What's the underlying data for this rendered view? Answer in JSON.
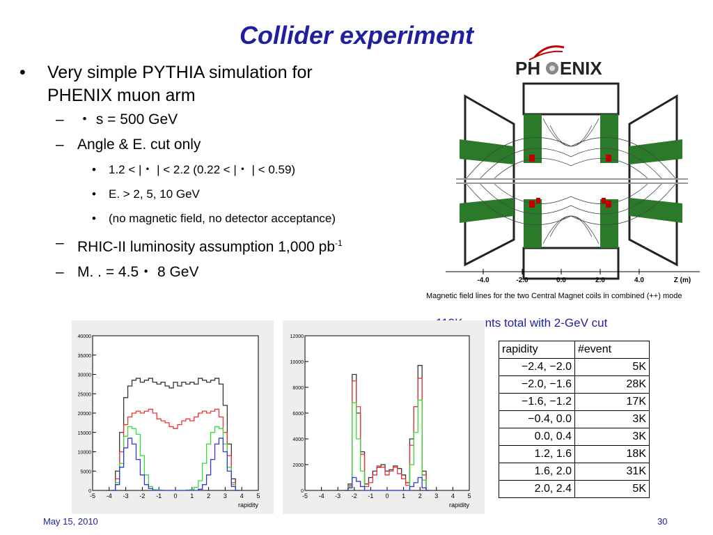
{
  "slide": {
    "title": "Collider experiment",
    "bullet_main_line1": "Very simple PYTHIA simulation for",
    "bullet_main_line2": "PHENIX muon arm",
    "sub1": "・ s = 500 GeV",
    "sub2": "Angle & E.  cut only",
    "sub2_items": [
      "1.2 < |・  | < 2.2 (0.22 < |・  | < 0.59)",
      "E.  > 2, 5, 10 GeV",
      "(no magnetic field, no detector acceptance)"
    ],
    "sub3_text": "RHIC-II luminosity assumption 1,000 pb",
    "sub3_sup": "-1",
    "sub4": "M.  .  = 4.5・  8 GeV",
    "bullet_glyph": "•",
    "dash_glyph": "–"
  },
  "phenix": {
    "logo_left": "PH",
    "logo_right": "ENIX",
    "axis_ticks": [
      "-4.0",
      "-2.0",
      "0.0",
      "2.0",
      "4.0"
    ],
    "axis_label": "Z (m)",
    "caption": "Magnetic field lines for the two Central Magnet coils in combined (++) mode"
  },
  "events_caption": "110K events total with 2-GeV cut",
  "table": {
    "headers": [
      "rapidity",
      "#event"
    ],
    "rows": [
      [
        "−2.4, −2.0",
        "5K"
      ],
      [
        "−2.0, −1.6",
        "28K"
      ],
      [
        "−1.6, −1.2",
        "17K"
      ],
      [
        "−0.4, 0.0",
        "3K"
      ],
      [
        "0.0, 0.4",
        "3K"
      ],
      [
        "1.2, 1.6",
        "18K"
      ],
      [
        "1.6, 2.0",
        "31K"
      ],
      [
        "2.0, 2.4",
        "5K"
      ]
    ]
  },
  "chart_data": [
    {
      "type": "line",
      "title": "",
      "xlabel": "rapidity",
      "ylabel": "",
      "xlim": [
        -5,
        5
      ],
      "ylim": [
        0,
        40000
      ],
      "x_ticks": [
        -5,
        -4,
        -3,
        -2,
        -1,
        0,
        1,
        2,
        3,
        4,
        5
      ],
      "y_ticks": [
        0,
        5000,
        10000,
        15000,
        20000,
        25000,
        30000,
        35000,
        40000
      ],
      "x": [
        -3.75,
        -3.5,
        -3.25,
        -3.0,
        -2.75,
        -2.5,
        -2.25,
        -2.0,
        -1.75,
        -1.5,
        -1.25,
        -1.0,
        -0.75,
        -0.5,
        -0.25,
        0.0,
        0.25,
        0.5,
        0.75,
        1.0,
        1.25,
        1.5,
        1.75,
        2.0,
        2.25,
        2.5,
        2.75,
        3.0,
        3.25,
        3.5,
        3.75
      ],
      "series": [
        {
          "color": "#333333",
          "values": [
            0,
            5000,
            15000,
            24000,
            27000,
            28500,
            29000,
            28000,
            28500,
            29000,
            28000,
            27500,
            28000,
            27000,
            26500,
            28000,
            27000,
            28000,
            27500,
            28000,
            27500,
            29000,
            28500,
            28000,
            28500,
            29000,
            27500,
            22000,
            12000,
            3000,
            0
          ]
        },
        {
          "color": "#ee3333",
          "values": [
            0,
            3000,
            10000,
            17000,
            19000,
            20000,
            20500,
            20000,
            20500,
            21000,
            20000,
            18500,
            18000,
            17500,
            16500,
            16000,
            17000,
            18000,
            18500,
            18000,
            19000,
            20000,
            20500,
            20000,
            20500,
            21000,
            19000,
            15000,
            9000,
            2000,
            0
          ]
        },
        {
          "color": "#33dd33",
          "values": [
            0,
            2000,
            7000,
            14000,
            16500,
            16000,
            14500,
            9000,
            4000,
            1000,
            200,
            100,
            50,
            0,
            0,
            0,
            0,
            0,
            100,
            200,
            800,
            2500,
            7000,
            12000,
            15000,
            16500,
            16000,
            12000,
            6000,
            1500,
            0
          ]
        },
        {
          "color": "#3333dd",
          "values": [
            0,
            1500,
            6000,
            11000,
            13500,
            12000,
            8000,
            4000,
            1500,
            500,
            0,
            0,
            0,
            0,
            0,
            0,
            0,
            0,
            0,
            0,
            0,
            300,
            1500,
            4000,
            8000,
            12000,
            13500,
            10000,
            5000,
            1000,
            0
          ]
        }
      ]
    },
    {
      "type": "line",
      "title": "",
      "xlabel": "rapidity",
      "ylabel": "",
      "xlim": [
        -5,
        5
      ],
      "ylim": [
        0,
        12000
      ],
      "x_ticks": [
        -5,
        -4,
        -3,
        -2,
        -1,
        0,
        1,
        2,
        3,
        4,
        5
      ],
      "y_ticks": [
        0,
        2000,
        4000,
        6000,
        8000,
        10000,
        12000
      ],
      "x": [
        -2.5,
        -2.25,
        -2.0,
        -1.75,
        -1.5,
        -1.25,
        -1.0,
        -0.75,
        -0.5,
        -0.25,
        0.0,
        0.25,
        0.5,
        0.75,
        1.0,
        1.25,
        1.5,
        1.75,
        2.0,
        2.25,
        2.5
      ],
      "series": [
        {
          "color": "#333333",
          "values": [
            0,
            500,
            9000,
            6000,
            3000,
            500,
            1000,
            1500,
            1800,
            2000,
            1500,
            1600,
            1900,
            1700,
            1200,
            600,
            4000,
            6500,
            9700,
            1500,
            0
          ]
        },
        {
          "color": "#ee3333",
          "values": [
            0,
            400,
            8500,
            6500,
            2800,
            300,
            600,
            1200,
            1900,
            1800,
            1200,
            1500,
            1800,
            1300,
            900,
            400,
            3500,
            6500,
            8700,
            1200,
            0
          ]
        },
        {
          "color": "#33dd33",
          "values": [
            0,
            300,
            6800,
            4000,
            1500,
            0,
            0,
            0,
            0,
            0,
            0,
            0,
            0,
            0,
            0,
            0,
            2000,
            4500,
            7000,
            800,
            0
          ]
        },
        {
          "color": "#3333dd",
          "values": [
            0,
            200,
            1000,
            700,
            300,
            0,
            0,
            0,
            0,
            0,
            0,
            0,
            0,
            0,
            0,
            0,
            300,
            600,
            1000,
            200,
            0
          ]
        }
      ]
    }
  ],
  "footer": {
    "date": "May 15, 2010",
    "page": "30"
  }
}
